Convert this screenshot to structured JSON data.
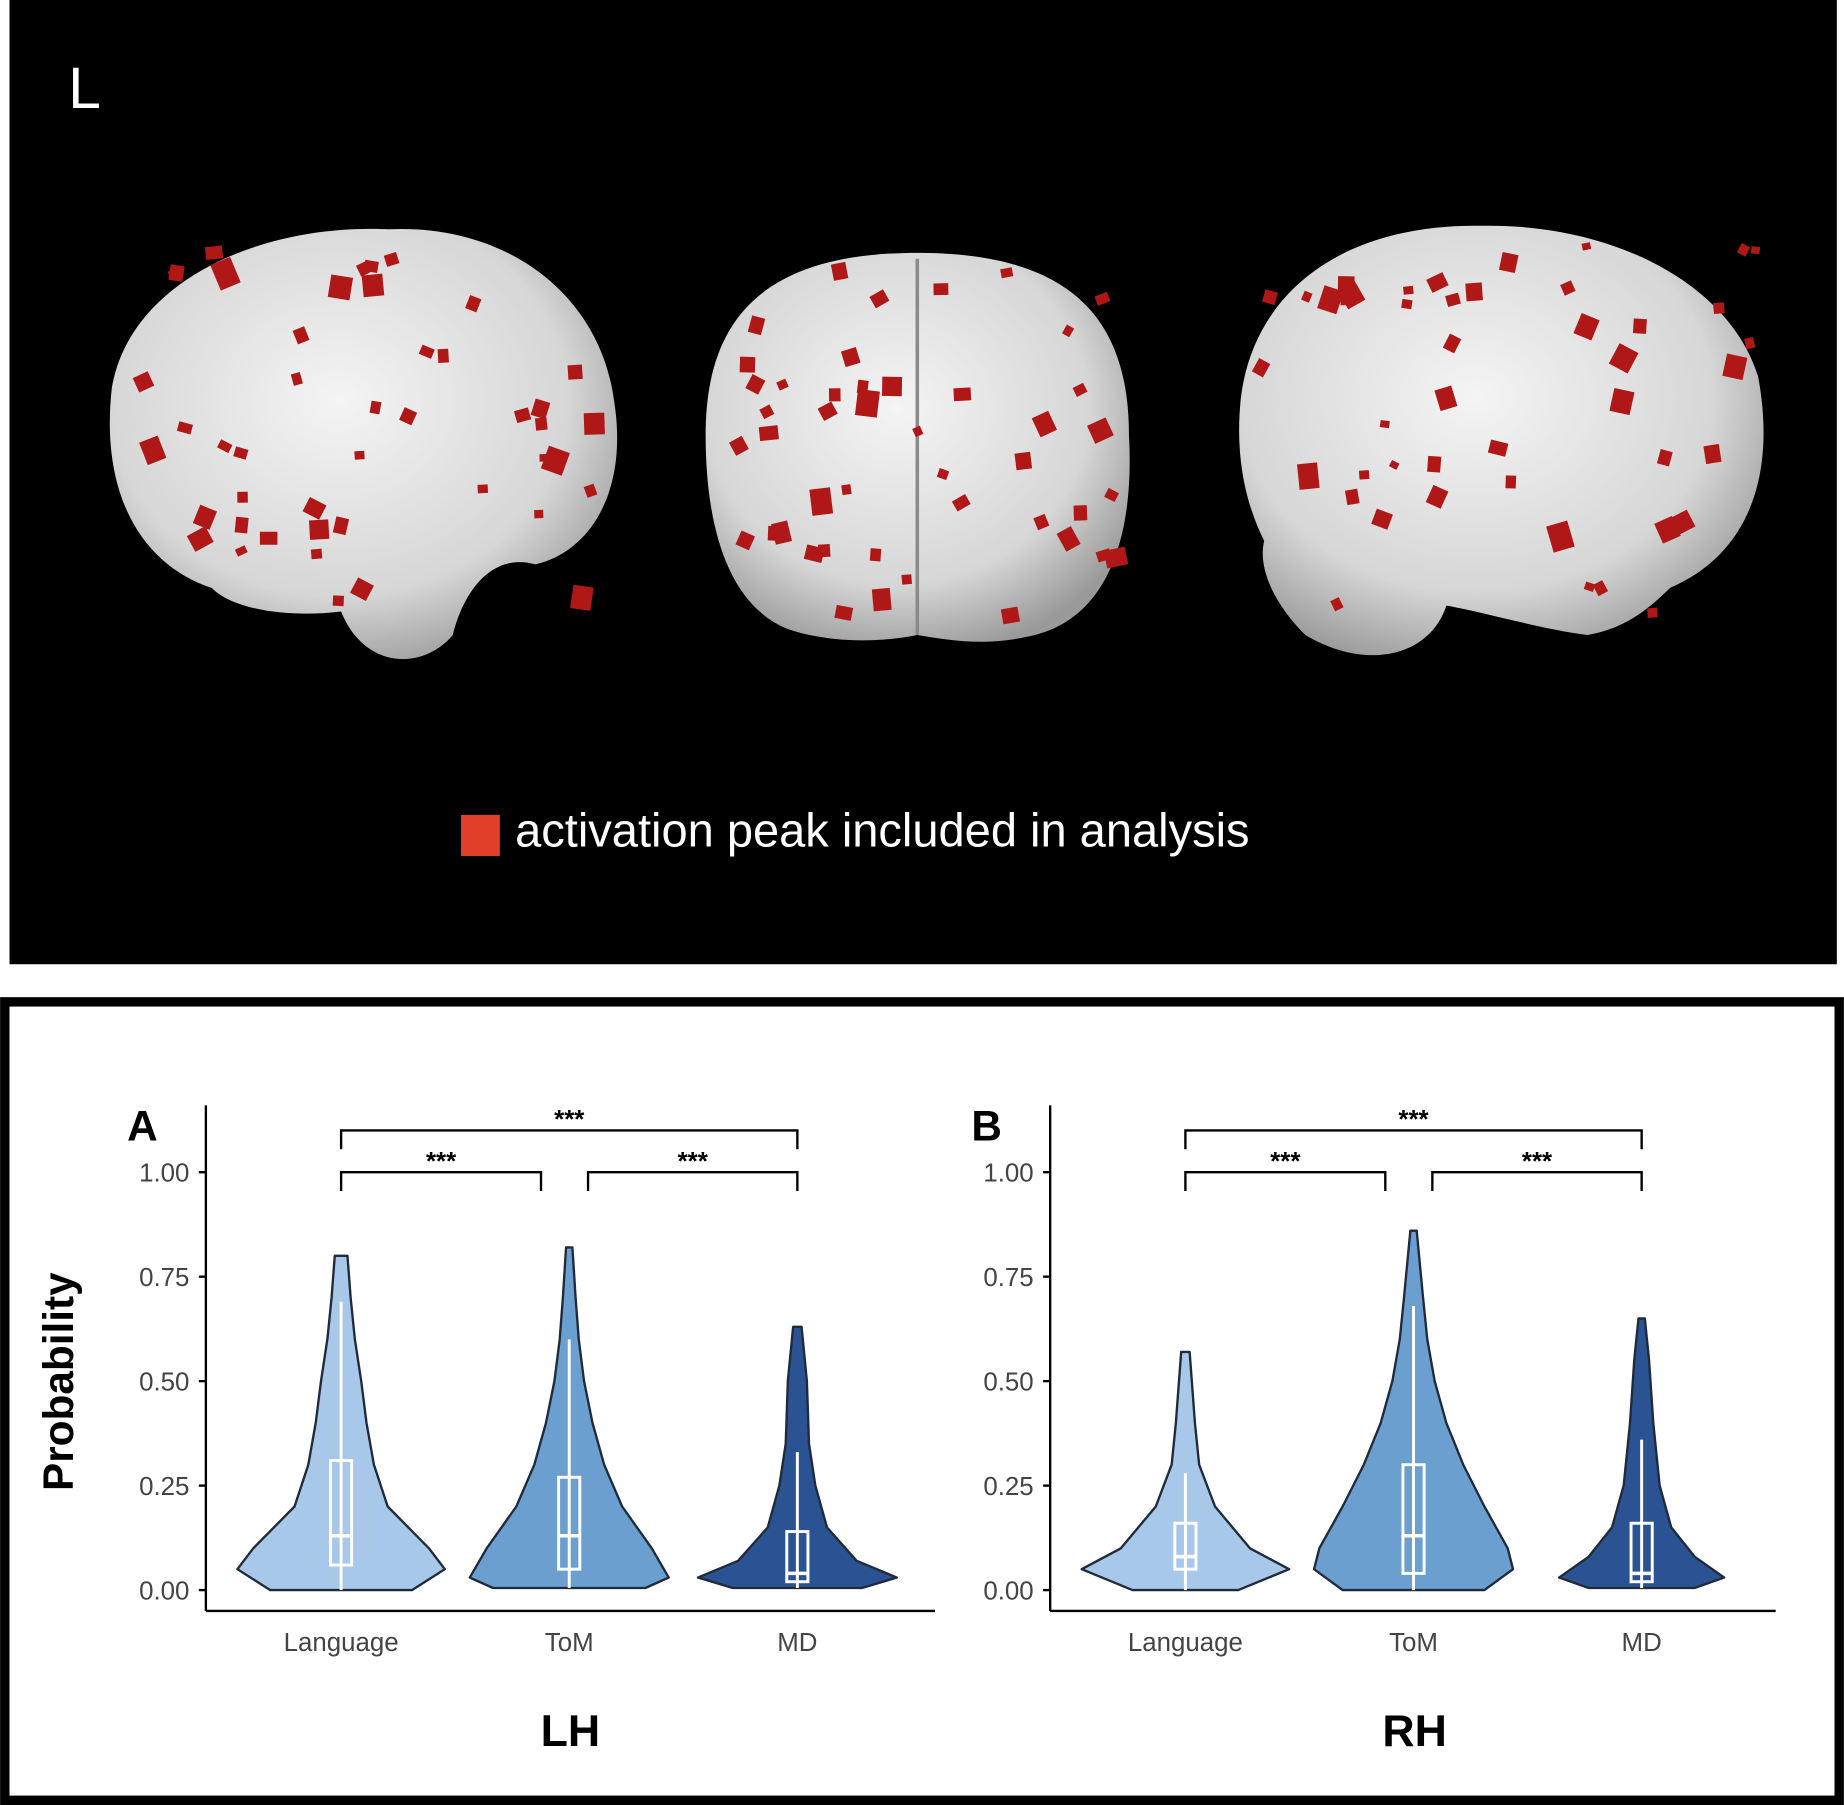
{
  "brain_panel": {
    "label": "L",
    "legend": "activation peak included in analysis",
    "legend_color": "#e0402a"
  },
  "chart_data": [
    {
      "type": "violin",
      "panel": "A",
      "ylabel": "Probability",
      "xlabel": "LH",
      "ylim": [
        -0.05,
        1.16
      ],
      "yticks": [
        {
          "value": 0,
          "label": "0.00"
        },
        {
          "value": 0.25,
          "label": "0.25"
        },
        {
          "value": 0.5,
          "label": "0.50"
        },
        {
          "value": 0.75,
          "label": "0.75"
        },
        {
          "value": 1,
          "label": "1.00"
        }
      ],
      "categories": [
        "Language",
        "ToM",
        "MD"
      ],
      "series": [
        {
          "color": "#a7c8e8",
          "density_at": [
            0,
            0.05,
            0.1,
            0.2,
            0.3,
            0.4,
            0.5,
            0.6,
            0.7,
            0.8
          ],
          "density": [
            0.67,
            0.98,
            0.83,
            0.44,
            0.31,
            0.24,
            0.19,
            0.13,
            0.09,
            0.06
          ],
          "whisker_low": 0,
          "q1": 0.06,
          "median": 0.13,
          "q3": 0.31,
          "whisker_high": 0.69
        },
        {
          "color": "#6a9fd0",
          "density_at": [
            0.005,
            0.03,
            0.1,
            0.2,
            0.3,
            0.4,
            0.5,
            0.6,
            0.7,
            0.82
          ],
          "density": [
            0.72,
            0.94,
            0.78,
            0.5,
            0.33,
            0.22,
            0.14,
            0.09,
            0.06,
            0.03
          ],
          "whisker_low": 0.005,
          "q1": 0.05,
          "median": 0.13,
          "q3": 0.27,
          "whisker_high": 0.6
        },
        {
          "color": "#2b5394",
          "density_at": [
            0.005,
            0.03,
            0.07,
            0.15,
            0.25,
            0.35,
            0.5,
            0.63
          ],
          "density": [
            0.61,
            0.94,
            0.56,
            0.28,
            0.17,
            0.11,
            0.09,
            0.04
          ],
          "whisker_low": 0.005,
          "q1": 0.02,
          "median": 0.04,
          "q3": 0.14,
          "whisker_high": 0.33
        }
      ],
      "brackets": [
        {
          "from": 0,
          "to": 1,
          "y": 1,
          "label": "***"
        },
        {
          "from": 1,
          "to": 2,
          "y": 1,
          "label": "***"
        },
        {
          "from": 0,
          "to": 2,
          "y": 1.1,
          "label": "***"
        }
      ]
    },
    {
      "type": "violin",
      "panel": "B",
      "xlabel": "RH",
      "ylim": [
        -0.05,
        1.16
      ],
      "yticks": [
        {
          "value": 0,
          "label": "0.00"
        },
        {
          "value": 0.25,
          "label": "0.25"
        },
        {
          "value": 0.5,
          "label": "0.50"
        },
        {
          "value": 0.75,
          "label": "0.75"
        },
        {
          "value": 1,
          "label": "1.00"
        }
      ],
      "categories": [
        "Language",
        "ToM",
        "MD"
      ],
      "series": [
        {
          "color": "#a7c8e8",
          "density_at": [
            0,
            0.05,
            0.1,
            0.2,
            0.3,
            0.4,
            0.57
          ],
          "density": [
            0.5,
            0.98,
            0.61,
            0.28,
            0.13,
            0.09,
            0.04
          ],
          "whisker_low": 0,
          "q1": 0.05,
          "median": 0.08,
          "q3": 0.16,
          "whisker_high": 0.28
        },
        {
          "color": "#6a9fd0",
          "density_at": [
            0,
            0.05,
            0.1,
            0.2,
            0.3,
            0.4,
            0.5,
            0.6,
            0.7,
            0.86
          ],
          "density": [
            0.67,
            0.94,
            0.89,
            0.67,
            0.47,
            0.31,
            0.2,
            0.13,
            0.09,
            0.03
          ],
          "whisker_low": 0,
          "q1": 0.04,
          "median": 0.13,
          "q3": 0.3,
          "whisker_high": 0.68
        },
        {
          "color": "#2b5394",
          "density_at": [
            0.005,
            0.03,
            0.08,
            0.15,
            0.25,
            0.4,
            0.55,
            0.65
          ],
          "density": [
            0.5,
            0.78,
            0.5,
            0.28,
            0.17,
            0.11,
            0.07,
            0.03
          ],
          "whisker_low": 0.005,
          "q1": 0.02,
          "median": 0.04,
          "q3": 0.16,
          "whisker_high": 0.36
        }
      ],
      "brackets": [
        {
          "from": 0,
          "to": 1,
          "y": 1,
          "label": "***"
        },
        {
          "from": 1,
          "to": 2,
          "y": 1,
          "label": "***"
        },
        {
          "from": 0,
          "to": 2,
          "y": 1.1,
          "label": "***"
        }
      ]
    }
  ]
}
